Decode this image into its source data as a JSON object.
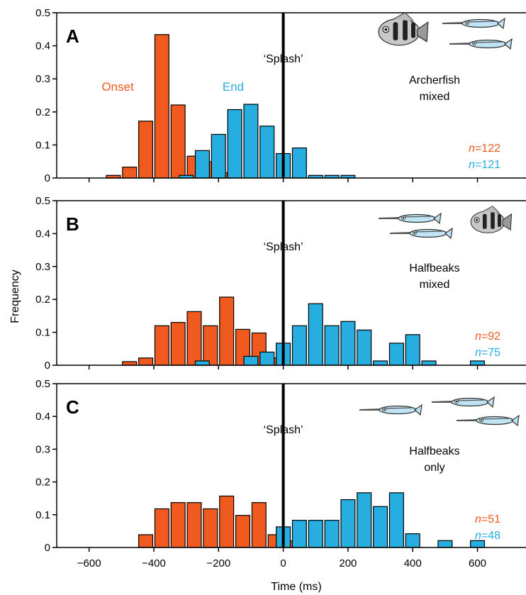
{
  "figure": {
    "ylabel": "Frequency",
    "xlabel": "Time (ms)",
    "xticks": [
      -600,
      -400,
      -200,
      0,
      200,
      400,
      600
    ],
    "xtick_labels": [
      "−600",
      "−400",
      "−200",
      "0",
      "200",
      "400",
      "600"
    ],
    "colors": {
      "onset": "#f05a1e",
      "end": "#27aee1",
      "axis": "#000000"
    }
  },
  "chart_data": [
    {
      "type": "bar",
      "panel": "A",
      "subject": "Archerfish mixed",
      "subject_lines": [
        "Archerfish",
        "mixed"
      ],
      "marker_label": "‘Splash’",
      "labels": {
        "onset": "Onset",
        "end": "End"
      },
      "ylim": [
        0,
        0.5
      ],
      "yticks": [
        0,
        0.1,
        0.2,
        0.3,
        0.4,
        0.5
      ],
      "ytick_labels": [
        "0",
        "0.1",
        "0.2",
        "0.3",
        "0.4",
        "0.5"
      ],
      "xlim": [
        -700,
        750
      ],
      "bin_width_ms": 50,
      "n": {
        "onset_prefix": "n",
        "onset_value": "=122",
        "end_prefix": "n",
        "end_value": "=121"
      },
      "series": [
        {
          "name": "Onset",
          "bin_starts": [
            -550,
            -500,
            -450,
            -400,
            -350,
            -300,
            -250,
            -200
          ],
          "values": [
            0.008,
            0.033,
            0.172,
            0.434,
            0.221,
            0.066,
            0.049,
            0.016
          ]
        },
        {
          "name": "End",
          "bin_starts": [
            -325,
            -275,
            -225,
            -175,
            -125,
            -75,
            -25,
            25,
            75,
            125,
            175
          ],
          "values": [
            0.008,
            0.083,
            0.132,
            0.207,
            0.223,
            0.157,
            0.074,
            0.091,
            0.008,
            0.008,
            0.008
          ]
        }
      ]
    },
    {
      "type": "bar",
      "panel": "B",
      "subject": "Halfbeaks mixed",
      "subject_lines": [
        "Halfbeaks",
        "mixed"
      ],
      "marker_label": "‘Splash’",
      "ylim": [
        0,
        0.5
      ],
      "yticks": [
        0,
        0.1,
        0.2,
        0.3,
        0.4,
        0.5
      ],
      "ytick_labels": [
        "0",
        "0.1",
        "0.2",
        "0.3",
        "0.4",
        "0.5"
      ],
      "xlim": [
        -700,
        750
      ],
      "bin_width_ms": 50,
      "n": {
        "onset_prefix": "n",
        "onset_value": "=92",
        "end_prefix": "n",
        "end_value": "=75"
      },
      "series": [
        {
          "name": "Onset",
          "bin_starts": [
            -500,
            -450,
            -400,
            -350,
            -300,
            -250,
            -200,
            -150,
            -100,
            -50
          ],
          "values": [
            0.011,
            0.022,
            0.12,
            0.13,
            0.163,
            0.12,
            0.207,
            0.109,
            0.098,
            0.022
          ]
        },
        {
          "name": "End",
          "bin_starts": [
            -275,
            -125,
            -75,
            -25,
            25,
            75,
            125,
            175,
            225,
            275,
            325,
            375,
            425,
            575
          ],
          "values": [
            0.013,
            0.027,
            0.04,
            0.067,
            0.12,
            0.187,
            0.12,
            0.133,
            0.107,
            0.013,
            0.067,
            0.093,
            0.013,
            0.013
          ]
        }
      ]
    },
    {
      "type": "bar",
      "panel": "C",
      "subject": "Halfbeaks only",
      "subject_lines": [
        "Halfbeaks",
        "only"
      ],
      "marker_label": "‘Splash’",
      "ylim": [
        0,
        0.5
      ],
      "yticks": [
        0,
        0.1,
        0.2,
        0.3,
        0.4,
        0.5
      ],
      "ytick_labels": [
        "0",
        "0.1",
        "0.2",
        "0.3",
        "0.4",
        "0.5"
      ],
      "xlim": [
        -700,
        750
      ],
      "bin_width_ms": 50,
      "n": {
        "onset_prefix": "n",
        "onset_value": "=51",
        "end_prefix": "n",
        "end_value": "=48"
      },
      "series": [
        {
          "name": "Onset",
          "bin_starts": [
            -450,
            -400,
            -350,
            -300,
            -250,
            -200,
            -150,
            -100,
            -50,
            0
          ],
          "values": [
            0.039,
            0.118,
            0.137,
            0.137,
            0.118,
            0.157,
            0.098,
            0.137,
            0.039,
            0.02
          ]
        },
        {
          "name": "End",
          "bin_starts": [
            -25,
            25,
            75,
            125,
            175,
            225,
            275,
            325,
            375,
            475,
            575
          ],
          "values": [
            0.063,
            0.083,
            0.083,
            0.083,
            0.146,
            0.167,
            0.125,
            0.167,
            0.042,
            0.021,
            0.021
          ]
        }
      ]
    }
  ]
}
